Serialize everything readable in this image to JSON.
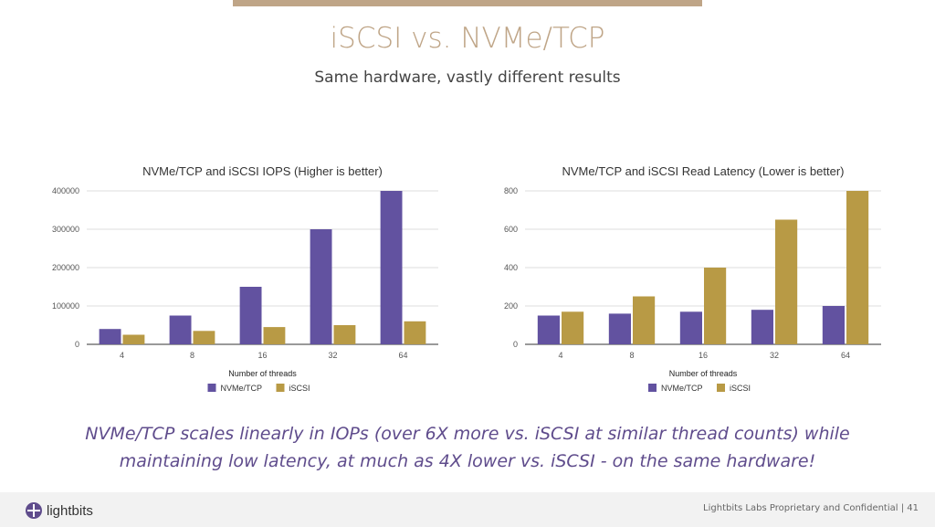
{
  "slide": {
    "title": "iSCSI vs. NVMe/TCP",
    "subtitle": "Same hardware, vastly different results",
    "caption_line1": "NVMe/TCP scales linearly in IOPs (over 6X more vs. iSCSI at similar thread counts) while",
    "caption_line2": "maintaining low latency, at much as 4X lower vs. iSCSI - on the same hardware!",
    "footer_text": "Lightbits Labs Proprietary and Confidential  |  41",
    "logo_text": "lightbits"
  },
  "colors": {
    "accent": "#bfa587",
    "nvme": "#6252a0",
    "iscsi": "#b89a45",
    "caption": "#5f4c8c"
  },
  "chart_data": [
    {
      "type": "bar",
      "title": "NVMe/TCP and iSCSI IOPS (Higher is better)",
      "xlabel": "Number of threads",
      "ylabel": "",
      "categories": [
        "4",
        "8",
        "16",
        "32",
        "64"
      ],
      "series": [
        {
          "name": "NVMe/TCP",
          "values": [
            40000,
            75000,
            150000,
            300000,
            400000
          ]
        },
        {
          "name": "iSCSI",
          "values": [
            25000,
            35000,
            45000,
            50000,
            60000
          ]
        }
      ],
      "ylim": [
        0,
        400000
      ],
      "yticks": [
        "0",
        "100000",
        "200000",
        "300000",
        "400000"
      ],
      "yticks_values": [
        0,
        100000,
        200000,
        300000,
        400000
      ],
      "grid": true,
      "legend": "bottom"
    },
    {
      "type": "bar",
      "title": "NVMe/TCP and iSCSI Read Latency (Lower is better)",
      "xlabel": "Number of threads",
      "ylabel": "",
      "categories": [
        "4",
        "8",
        "16",
        "32",
        "64"
      ],
      "series": [
        {
          "name": "NVMe/TCP",
          "values": [
            150,
            160,
            170,
            180,
            200
          ]
        },
        {
          "name": "iSCSI",
          "values": [
            170,
            250,
            400,
            650,
            800
          ]
        }
      ],
      "ylim": [
        0,
        800
      ],
      "yticks": [
        "0",
        "200",
        "400",
        "600",
        "800"
      ],
      "yticks_values": [
        0,
        200,
        400,
        600,
        800
      ],
      "grid": true,
      "legend": "bottom"
    }
  ]
}
